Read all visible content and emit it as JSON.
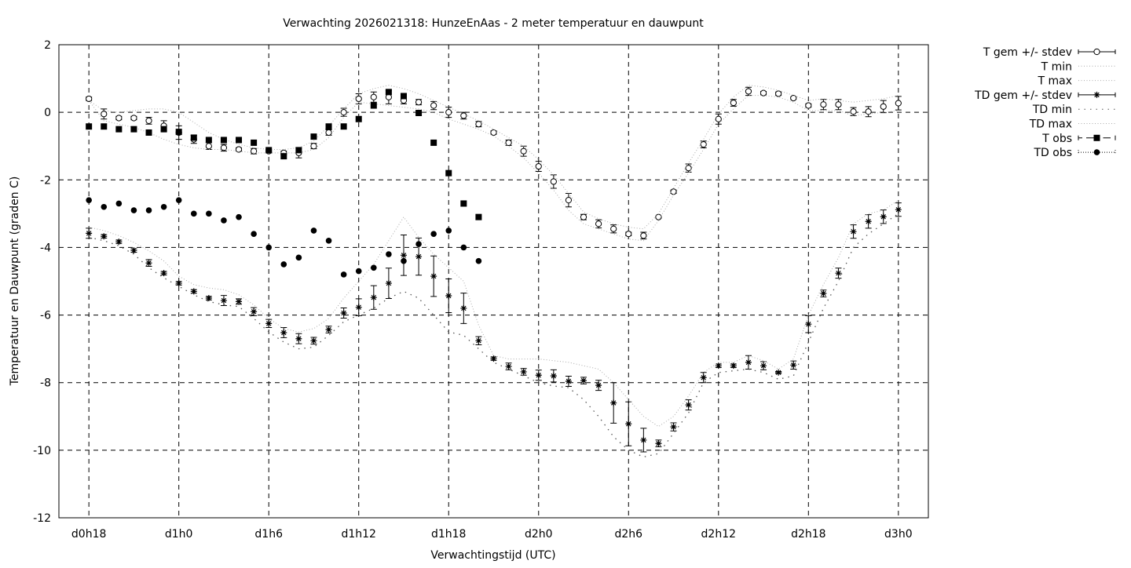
{
  "chart_data": {
    "type": "line",
    "title": "Verwachting 2026021318: HunzeEnAas - 2 meter temperatuur en dauwpunt",
    "xlabel": "Verwachtingstijd (UTC)",
    "ylabel": "Temperatuur en Dauwpunt (graden C)",
    "xlim": [
      16,
      74
    ],
    "ylim": [
      -12,
      2
    ],
    "grid": true,
    "legend_position": "outside-right",
    "x_ticks": [
      {
        "value": 18,
        "label": "d0h18"
      },
      {
        "value": 24,
        "label": "d1h0"
      },
      {
        "value": 30,
        "label": "d1h6"
      },
      {
        "value": 36,
        "label": "d1h12"
      },
      {
        "value": 42,
        "label": "d1h18"
      },
      {
        "value": 48,
        "label": "d2h0"
      },
      {
        "value": 54,
        "label": "d2h6"
      },
      {
        "value": 60,
        "label": "d2h12"
      },
      {
        "value": 66,
        "label": "d2h18"
      },
      {
        "value": 72,
        "label": "d3h0"
      }
    ],
    "y_ticks": [
      {
        "value": 2,
        "label": "2"
      },
      {
        "value": 0,
        "label": "0"
      },
      {
        "value": -2,
        "label": "-2"
      },
      {
        "value": -4,
        "label": "-4"
      },
      {
        "value": -6,
        "label": "-6"
      },
      {
        "value": -8,
        "label": "-8"
      },
      {
        "value": -10,
        "label": "-10"
      },
      {
        "value": -12,
        "label": "-12"
      }
    ],
    "x_start": 18,
    "series": [
      {
        "name": "T gem +/- stdev",
        "kind": "errorbar-circle",
        "values": [
          0.4,
          -0.05,
          -0.17,
          -0.17,
          -0.25,
          -0.4,
          -0.6,
          -0.8,
          -1.0,
          -1.05,
          -1.1,
          -1.15,
          -1.15,
          -1.2,
          -1.2,
          -1.0,
          -0.6,
          0.0,
          0.4,
          0.45,
          0.45,
          0.35,
          0.3,
          0.2,
          0.0,
          -0.1,
          -0.35,
          -0.6,
          -0.9,
          -1.15,
          -1.6,
          -2.05,
          -2.6,
          -3.1,
          -3.3,
          -3.45,
          -3.6,
          -3.65,
          -3.1,
          -2.35,
          -1.65,
          -0.95,
          -0.2,
          0.28,
          0.62,
          0.57,
          0.55,
          0.42,
          0.2,
          0.23,
          0.23,
          0.02,
          0.02,
          0.17,
          0.27
        ],
        "stdev": [
          0.05,
          0.15,
          0.05,
          0.05,
          0.1,
          0.15,
          0.2,
          0.12,
          0.1,
          0.1,
          0.05,
          0.08,
          0.05,
          0.05,
          0.15,
          0.08,
          0.08,
          0.12,
          0.15,
          0.15,
          0.2,
          0.1,
          0.08,
          0.12,
          0.15,
          0.1,
          0.08,
          0.05,
          0.08,
          0.15,
          0.15,
          0.2,
          0.2,
          0.08,
          0.12,
          0.12,
          0.05,
          0.1,
          0.03,
          0.05,
          0.12,
          0.1,
          0.15,
          0.1,
          0.12,
          0.05,
          0.05,
          0.03,
          0.05,
          0.15,
          0.15,
          0.12,
          0.15,
          0.18,
          0.2
        ]
      },
      {
        "name": "T min",
        "kind": "dotted-light",
        "values": [
          0.35,
          -0.25,
          -0.35,
          -0.45,
          -0.6,
          -0.8,
          -0.95,
          -1.05,
          -1.1,
          -1.1,
          -1.15,
          -1.2,
          -1.2,
          -1.2,
          -1.2,
          -1.1,
          -0.75,
          -0.15,
          0.3,
          0.25,
          0.2,
          0.15,
          0.1,
          0.0,
          -0.2,
          -0.35,
          -0.5,
          -0.7,
          -1.0,
          -1.35,
          -1.8,
          -2.3,
          -2.9,
          -3.3,
          -3.45,
          -3.6,
          -3.75,
          -3.8,
          -3.2,
          -2.45,
          -1.8,
          -1.1,
          -0.35,
          0.1,
          0.5,
          0.5,
          0.45,
          0.3,
          0.05,
          0.05,
          0.05,
          -0.1,
          -0.05,
          0.0,
          0.05
        ]
      },
      {
        "name": "T max",
        "kind": "dotted-light",
        "values": [
          0.35,
          0.05,
          0.0,
          0.05,
          0.1,
          0.1,
          0.0,
          -0.3,
          -0.6,
          -0.8,
          -0.95,
          -1.05,
          -1.1,
          -1.1,
          -1.05,
          -0.85,
          -0.4,
          0.1,
          0.55,
          0.7,
          0.8,
          0.7,
          0.55,
          0.35,
          0.15,
          -0.05,
          -0.25,
          -0.5,
          -0.75,
          -1.0,
          -1.4,
          -1.85,
          -2.4,
          -2.95,
          -3.15,
          -3.3,
          -3.4,
          -3.45,
          -3.0,
          -2.25,
          -1.5,
          -0.8,
          -0.05,
          0.45,
          0.8,
          0.75,
          0.65,
          0.5,
          0.35,
          0.4,
          0.35,
          0.3,
          0.35,
          0.4,
          0.5
        ]
      },
      {
        "name": "TD gem +/- stdev",
        "kind": "errorbar-star",
        "values": [
          -3.58,
          -3.67,
          -3.83,
          -4.09,
          -4.46,
          -4.76,
          -5.06,
          -5.3,
          -5.5,
          -5.57,
          -5.6,
          -5.9,
          -6.25,
          -6.52,
          -6.7,
          -6.76,
          -6.43,
          -5.94,
          -5.77,
          -5.48,
          -5.06,
          -4.23,
          -4.27,
          -4.85,
          -5.43,
          -5.8,
          -6.76,
          -7.29,
          -7.52,
          -7.68,
          -7.78,
          -7.8,
          -7.96,
          -7.94,
          -8.08,
          -8.6,
          -9.22,
          -9.7,
          -9.8,
          -9.31,
          -8.66,
          -7.85,
          -7.5,
          -7.5,
          -7.4,
          -7.5,
          -7.7,
          -7.48,
          -6.27,
          -5.36,
          -4.76,
          -3.53,
          -3.23,
          -3.09,
          -2.88
        ],
        "stdev": [
          0.15,
          0.05,
          0.05,
          0.05,
          0.1,
          0.05,
          0.05,
          0.05,
          0.05,
          0.15,
          0.08,
          0.12,
          0.12,
          0.15,
          0.15,
          0.1,
          0.1,
          0.15,
          0.25,
          0.35,
          0.45,
          0.6,
          0.55,
          0.6,
          0.5,
          0.45,
          0.12,
          0.05,
          0.1,
          0.1,
          0.15,
          0.18,
          0.15,
          0.1,
          0.15,
          0.6,
          0.65,
          0.35,
          0.1,
          0.12,
          0.15,
          0.15,
          0.05,
          0.05,
          0.2,
          0.12,
          0.03,
          0.12,
          0.25,
          0.1,
          0.15,
          0.2,
          0.2,
          0.2,
          0.2
        ]
      },
      {
        "name": "TD min",
        "kind": "dotted-dark",
        "values": [
          -3.7,
          -3.8,
          -3.95,
          -4.2,
          -4.6,
          -4.9,
          -5.15,
          -5.4,
          -5.6,
          -5.7,
          -5.75,
          -6.1,
          -6.5,
          -6.8,
          -7.0,
          -6.95,
          -6.6,
          -6.2,
          -6.0,
          -5.8,
          -5.5,
          -5.3,
          -5.5,
          -6.0,
          -6.5,
          -6.6,
          -7.0,
          -7.4,
          -7.6,
          -7.8,
          -8.0,
          -8.1,
          -8.15,
          -8.5,
          -9.0,
          -9.6,
          -10.0,
          -10.2,
          -10.1,
          -9.5,
          -8.9,
          -8.0,
          -7.7,
          -7.65,
          -7.6,
          -7.7,
          -7.9,
          -7.8,
          -6.8,
          -5.8,
          -5.0,
          -4.0,
          -3.6,
          -3.3,
          -3.0
        ]
      },
      {
        "name": "TD max",
        "kind": "dotted-light",
        "values": [
          -3.4,
          -3.5,
          -3.65,
          -3.85,
          -4.1,
          -4.4,
          -4.85,
          -5.1,
          -5.2,
          -5.25,
          -5.4,
          -5.7,
          -6.1,
          -6.4,
          -6.5,
          -6.4,
          -6.1,
          -5.5,
          -5.0,
          -4.5,
          -3.8,
          -3.1,
          -3.7,
          -4.2,
          -4.6,
          -5.0,
          -6.3,
          -7.2,
          -7.3,
          -7.3,
          -7.3,
          -7.35,
          -7.4,
          -7.5,
          -7.6,
          -8.0,
          -8.5,
          -9.0,
          -9.3,
          -9.0,
          -8.4,
          -7.7,
          -7.4,
          -7.4,
          -7.2,
          -7.35,
          -7.6,
          -7.3,
          -6.0,
          -5.1,
          -4.3,
          -3.3,
          -3.0,
          -2.9,
          -2.6
        ]
      },
      {
        "name": "T obs",
        "kind": "square",
        "values": [
          -0.42,
          -0.42,
          -0.5,
          -0.5,
          -0.6,
          -0.5,
          -0.58,
          -0.75,
          -0.82,
          -0.82,
          -0.82,
          -0.9,
          -1.12,
          -1.3,
          -1.12,
          -0.72,
          -0.42,
          -0.42,
          -0.2,
          0.2,
          0.6,
          0.48,
          -0.02,
          -0.9,
          -1.8,
          -2.7,
          -3.1
        ]
      },
      {
        "name": "TD obs",
        "kind": "dot",
        "values": [
          -2.6,
          -2.8,
          -2.7,
          -2.9,
          -2.9,
          -2.8,
          -2.6,
          -3.0,
          -3.0,
          -3.2,
          -3.1,
          -3.6,
          -4.0,
          -4.5,
          -4.3,
          -3.5,
          -3.8,
          -4.8,
          -4.7,
          -4.6,
          -4.2,
          -4.4,
          -3.9,
          -3.6,
          -3.5,
          -4.0,
          -4.4
        ]
      }
    ]
  }
}
